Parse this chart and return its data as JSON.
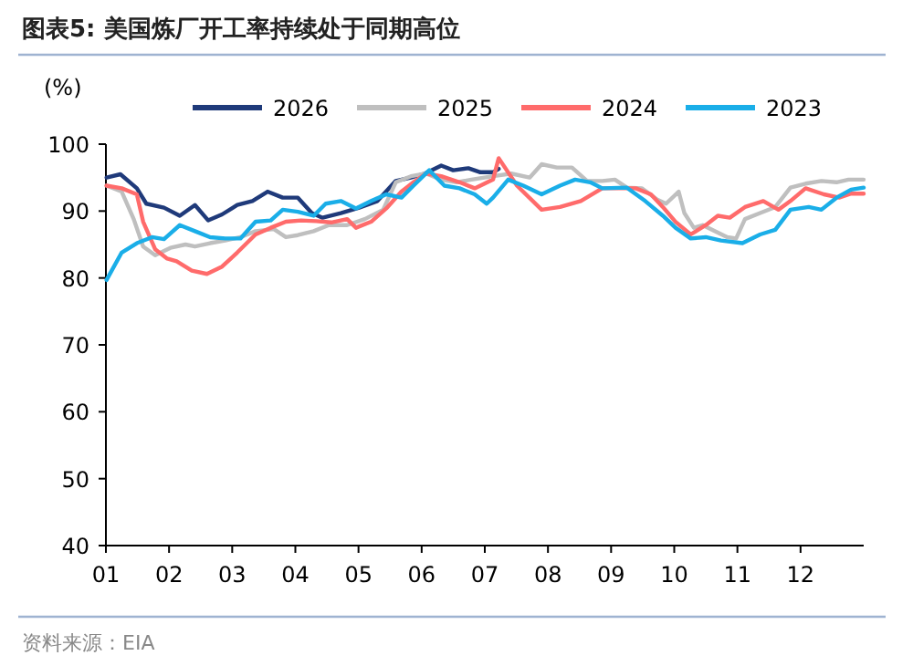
{
  "chart_data": {
    "type": "line",
    "title": "图表5:  美国炼厂开工率持续处于同期高位",
    "ylabel": "(%)",
    "annotations": [
      "资料来源：EIA"
    ],
    "xlim": [
      1,
      13
    ],
    "xticks": [
      {
        "value": 1,
        "label": "01"
      },
      {
        "value": 2,
        "label": "02"
      },
      {
        "value": 3,
        "label": "03"
      },
      {
        "value": 4,
        "label": "04"
      },
      {
        "value": 5,
        "label": "05"
      },
      {
        "value": 6,
        "label": "06"
      },
      {
        "value": 7,
        "label": "07"
      },
      {
        "value": 8,
        "label": "08"
      },
      {
        "value": 9,
        "label": "09"
      },
      {
        "value": 10,
        "label": "10"
      },
      {
        "value": 11,
        "label": "11"
      },
      {
        "value": 12,
        "label": "12"
      }
    ],
    "ylim": [
      40,
      100
    ],
    "yticks": [
      40,
      50,
      60,
      70,
      80,
      90,
      100
    ],
    "grid": false,
    "legend": "top",
    "marker": "none",
    "line_style": "solid",
    "series": [
      {
        "name": "2026",
        "color": "#1f3a7a",
        "x": [
          1.01,
          1.23,
          1.49,
          1.64,
          1.92,
          2.17,
          2.41,
          2.62,
          2.84,
          3.08,
          3.32,
          3.56,
          3.8,
          4.04,
          4.26,
          4.43,
          4.72,
          5.01,
          5.3,
          5.59,
          5.83,
          6.05,
          6.31,
          6.5,
          6.74,
          6.93,
          7.13,
          7.22
        ],
        "values": [
          95.0,
          95.5,
          93.4,
          91.1,
          90.5,
          89.3,
          90.9,
          88.6,
          89.5,
          90.9,
          91.5,
          92.9,
          92.0,
          92.0,
          89.7,
          89.0,
          89.7,
          90.5,
          91.5,
          94.5,
          95.0,
          95.6,
          96.8,
          96.1,
          96.4,
          95.8,
          95.8,
          96.3
        ]
      },
      {
        "name": "2025",
        "color": "#bfbfbf",
        "x": [
          1.01,
          1.25,
          1.44,
          1.59,
          1.78,
          2.02,
          2.26,
          2.41,
          2.65,
          2.89,
          3.13,
          3.37,
          3.66,
          3.85,
          4.04,
          4.29,
          4.53,
          4.82,
          5.1,
          5.39,
          5.59,
          5.83,
          6.07,
          6.31,
          6.55,
          6.79,
          7.13,
          7.42,
          7.71,
          7.9,
          8.14,
          8.38,
          8.62,
          8.86,
          9.06,
          9.25,
          9.49,
          9.73,
          9.87,
          10.07,
          10.16,
          10.31,
          10.45,
          10.64,
          10.84,
          10.98,
          11.12,
          11.36,
          11.6,
          11.84,
          12.08,
          12.33,
          12.57,
          12.76,
          13.0
        ],
        "values": [
          93.8,
          92.9,
          88.8,
          84.7,
          83.4,
          84.5,
          85.0,
          84.7,
          85.2,
          85.6,
          86.1,
          87.0,
          87.3,
          86.1,
          86.4,
          87.0,
          87.9,
          87.9,
          88.8,
          90.2,
          94.3,
          95.2,
          95.6,
          94.7,
          94.3,
          94.7,
          95.2,
          95.6,
          95.0,
          97.0,
          96.5,
          96.5,
          94.5,
          94.5,
          94.7,
          93.5,
          93.4,
          91.7,
          91.1,
          92.9,
          89.7,
          87.5,
          87.9,
          87.0,
          86.1,
          85.9,
          88.8,
          89.7,
          90.6,
          93.5,
          94.1,
          94.5,
          94.3,
          94.7,
          94.7
        ]
      },
      {
        "name": "2024",
        "color": "#ff6b6b",
        "x": [
          1.01,
          1.25,
          1.49,
          1.59,
          1.78,
          1.97,
          2.12,
          2.36,
          2.6,
          2.84,
          3.08,
          3.37,
          3.61,
          3.85,
          4.09,
          4.33,
          4.57,
          4.82,
          4.96,
          5.2,
          5.44,
          5.68,
          5.87,
          6.07,
          6.31,
          6.6,
          6.84,
          7.13,
          7.22,
          7.51,
          7.9,
          8.19,
          8.52,
          8.86,
          9.15,
          9.39,
          9.63,
          9.82,
          10.02,
          10.26,
          10.5,
          10.69,
          10.88,
          11.12,
          11.41,
          11.65,
          11.84,
          12.08,
          12.37,
          12.61,
          12.8,
          13.0
        ],
        "values": [
          93.8,
          93.4,
          92.5,
          88.4,
          84.3,
          82.9,
          82.5,
          81.1,
          80.6,
          81.7,
          83.8,
          86.5,
          87.5,
          88.4,
          88.6,
          88.5,
          88.3,
          88.8,
          87.5,
          88.4,
          90.4,
          92.9,
          94.3,
          95.6,
          95.2,
          94.3,
          93.4,
          94.7,
          97.9,
          93.8,
          90.2,
          90.6,
          91.5,
          93.4,
          93.4,
          93.4,
          92.5,
          90.6,
          88.4,
          86.5,
          87.9,
          89.3,
          89.0,
          90.6,
          91.5,
          90.2,
          91.5,
          93.4,
          92.5,
          92.0,
          92.6,
          92.6
        ]
      },
      {
        "name": "2023",
        "color": "#1aaee8",
        "x": [
          1.01,
          1.25,
          1.49,
          1.73,
          1.92,
          2.17,
          2.41,
          2.65,
          2.89,
          3.13,
          3.37,
          3.61,
          3.8,
          4.04,
          4.29,
          4.48,
          4.72,
          4.96,
          5.2,
          5.44,
          5.68,
          5.87,
          6.12,
          6.36,
          6.6,
          6.84,
          7.03,
          7.13,
          7.37,
          7.61,
          7.9,
          8.19,
          8.43,
          8.67,
          8.86,
          9.25,
          9.54,
          9.82,
          10.02,
          10.26,
          10.5,
          10.74,
          11.08,
          11.36,
          11.6,
          11.84,
          12.13,
          12.33,
          12.57,
          12.8,
          13.0
        ],
        "values": [
          79.7,
          83.8,
          85.2,
          86.1,
          85.8,
          87.9,
          87.0,
          86.1,
          85.9,
          85.9,
          88.4,
          88.6,
          90.2,
          89.9,
          89.3,
          91.1,
          91.5,
          90.4,
          91.5,
          92.5,
          92.0,
          93.8,
          96.1,
          93.8,
          93.4,
          92.5,
          91.1,
          92.0,
          94.7,
          93.8,
          92.5,
          93.8,
          94.7,
          94.3,
          93.4,
          93.5,
          91.5,
          89.3,
          87.5,
          85.9,
          86.1,
          85.6,
          85.2,
          86.5,
          87.2,
          90.2,
          90.6,
          90.2,
          92.0,
          93.2,
          93.5
        ]
      }
    ]
  }
}
